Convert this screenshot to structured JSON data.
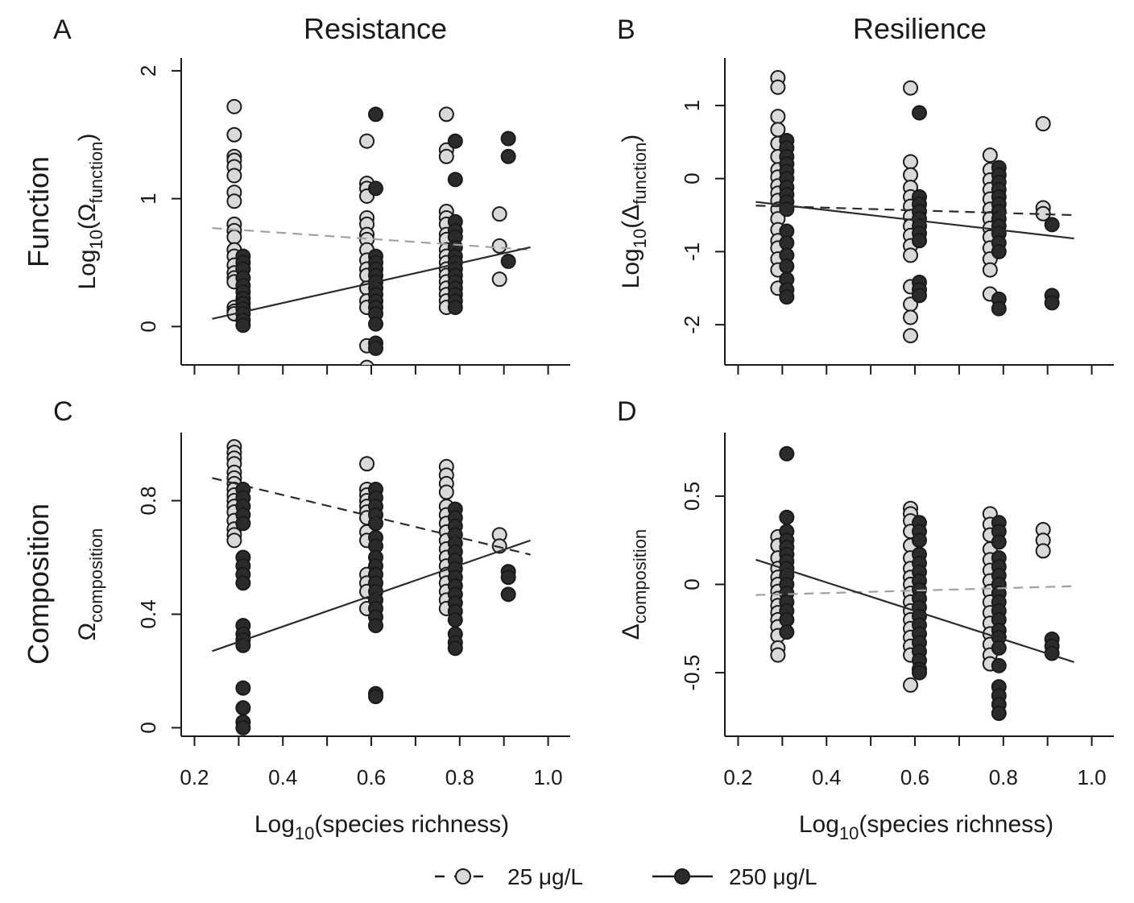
{
  "colors": {
    "low_fill": "#d9d9d9",
    "high_fill": "#2b2b2b",
    "point_stroke": "#1a1a1a",
    "fit_dark": "#2b2b2b",
    "fit_grey": "#a0a0a0"
  },
  "column_titles": [
    "Resistance",
    "Resilience"
  ],
  "row_titles": [
    "Function",
    "Composition"
  ],
  "x_axis_title": {
    "main": "Log",
    "sub": "10",
    "rest": "(species richness)"
  },
  "legend": {
    "low": {
      "label": "25 μg/L",
      "line": "dashed",
      "marker": "circle-light"
    },
    "high": {
      "label": "250 μg/L",
      "line": "solid",
      "marker": "circle-dark"
    }
  },
  "chart_data": [
    {
      "panel": "A",
      "type": "scatter",
      "column": "Resistance",
      "row": "Function",
      "ylabel": {
        "main": "Log",
        "sub": "10",
        "rest1": "(Ω",
        "sub2": "function",
        "rest2": ")"
      },
      "xlim": [
        0.17,
        1.05
      ],
      "ylim": [
        -0.3,
        2.1
      ],
      "xticks": [
        0.2,
        0.4,
        0.6,
        0.8,
        1.0
      ],
      "xtick_labels": [
        "0.2",
        "0.4",
        "0.6",
        "0.8",
        "1.0"
      ],
      "yticks": [
        0,
        1,
        2
      ],
      "ytick_labels": [
        "0",
        "1",
        "2"
      ],
      "series": [
        {
          "key": "low",
          "x": 0.29,
          "y": [
            1.72,
            1.5,
            1.33,
            1.3,
            1.25,
            1.18,
            1.05,
            0.98,
            0.8,
            0.75,
            0.7,
            0.6,
            0.55,
            0.48,
            0.42,
            0.38,
            0.35,
            0.15,
            0.12,
            0.1
          ]
        },
        {
          "key": "high",
          "x": 0.31,
          "y": [
            0.55,
            0.5,
            0.45,
            0.38,
            0.32,
            0.27,
            0.22,
            0.18,
            0.14,
            0.1,
            0.05,
            0.01
          ]
        },
        {
          "key": "low",
          "x": 0.59,
          "y": [
            1.45,
            1.12,
            1.08,
            1.02,
            0.85,
            0.8,
            0.72,
            0.68,
            0.6,
            0.52,
            0.45,
            0.4,
            0.3,
            0.2,
            0.15,
            -0.15,
            -0.32
          ]
        },
        {
          "key": "high",
          "x": 0.61,
          "y": [
            1.66,
            1.08,
            0.55,
            0.5,
            0.45,
            0.4,
            0.35,
            0.3,
            0.25,
            0.2,
            0.15,
            0.1,
            0.02,
            -0.13,
            -0.17
          ]
        },
        {
          "key": "low",
          "x": 0.77,
          "y": [
            1.66,
            1.38,
            1.33,
            0.9,
            0.85,
            0.8,
            0.72,
            0.68,
            0.6,
            0.55,
            0.5,
            0.45,
            0.4,
            0.35,
            0.3,
            0.25,
            0.2,
            0.15
          ]
        },
        {
          "key": "high",
          "x": 0.79,
          "y": [
            1.45,
            1.15,
            0.82,
            0.75,
            0.7,
            0.62,
            0.55,
            0.5,
            0.45,
            0.4,
            0.35,
            0.3,
            0.25,
            0.2,
            0.15
          ]
        },
        {
          "key": "low",
          "x": 0.89,
          "y": [
            0.88,
            0.63,
            0.37
          ]
        },
        {
          "key": "high",
          "x": 0.91,
          "y": [
            1.47,
            1.33,
            0.51
          ]
        }
      ],
      "fits": [
        {
          "key": "low",
          "style": "dashed-grey",
          "x": [
            0.24,
            0.96
          ],
          "y": [
            0.77,
            0.6
          ]
        },
        {
          "key": "high",
          "style": "solid",
          "x": [
            0.24,
            0.96
          ],
          "y": [
            0.06,
            0.62
          ]
        }
      ]
    },
    {
      "panel": "B",
      "type": "scatter",
      "column": "Resilience",
      "row": "Function",
      "ylabel": {
        "main": "Log",
        "sub": "10",
        "rest1": "(Δ",
        "sub2": "function",
        "rest2": ")"
      },
      "xlim": [
        0.17,
        1.05
      ],
      "ylim": [
        -2.55,
        1.65
      ],
      "xticks": [
        0.2,
        0.4,
        0.6,
        0.8,
        1.0
      ],
      "xtick_labels": [
        "0.2",
        "0.4",
        "0.6",
        "0.8",
        "1.0"
      ],
      "yticks": [
        1,
        0,
        -1,
        -2
      ],
      "ytick_labels": [
        "1",
        "0",
        "-1",
        "-2"
      ],
      "series": [
        {
          "key": "low",
          "x": 0.29,
          "y": [
            1.38,
            1.25,
            0.85,
            0.67,
            0.48,
            0.3,
            0.12,
            0.02,
            -0.1,
            -0.2,
            -0.3,
            -0.42,
            -0.55,
            -0.7,
            -0.85,
            -0.95,
            -1.1,
            -1.25,
            -1.5
          ]
        },
        {
          "key": "high",
          "x": 0.31,
          "y": [
            0.52,
            0.42,
            0.3,
            0.2,
            0.1,
            0.0,
            -0.12,
            -0.22,
            -0.32,
            -0.42,
            -0.72,
            -0.88,
            -1.05,
            -1.2,
            -1.38,
            -1.52,
            -1.62
          ]
        },
        {
          "key": "low",
          "x": 0.59,
          "y": [
            1.24,
            0.23,
            0.05,
            -0.12,
            -0.25,
            -0.38,
            -0.52,
            -0.65,
            -0.78,
            -0.92,
            -1.05,
            -1.48,
            -1.72,
            -1.9,
            -2.15
          ]
        },
        {
          "key": "high",
          "x": 0.61,
          "y": [
            0.9,
            -0.25,
            -0.35,
            -0.45,
            -0.55,
            -0.65,
            -0.75,
            -0.85,
            -1.42,
            -1.52,
            -1.6
          ]
        },
        {
          "key": "low",
          "x": 0.77,
          "y": [
            0.32,
            0.12,
            -0.02,
            -0.15,
            -0.28,
            -0.42,
            -0.55,
            -0.68,
            -0.8,
            -0.95,
            -1.1,
            -1.25,
            -1.58
          ]
        },
        {
          "key": "high",
          "x": 0.79,
          "y": [
            0.15,
            0.05,
            -0.05,
            -0.15,
            -0.25,
            -0.35,
            -0.45,
            -0.55,
            -0.65,
            -0.75,
            -0.88,
            -1.0,
            -1.65,
            -1.78
          ]
        },
        {
          "key": "low",
          "x": 0.89,
          "y": [
            0.75,
            -0.4,
            -0.48
          ]
        },
        {
          "key": "high",
          "x": 0.91,
          "y": [
            -0.63,
            -1.6,
            -1.7
          ]
        }
      ],
      "fits": [
        {
          "key": "low",
          "style": "dashed",
          "x": [
            0.24,
            0.96
          ],
          "y": [
            -0.37,
            -0.5
          ]
        },
        {
          "key": "high",
          "style": "solid",
          "x": [
            0.24,
            0.96
          ],
          "y": [
            -0.32,
            -0.82
          ]
        }
      ]
    },
    {
      "panel": "C",
      "type": "scatter",
      "column": "Resistance",
      "row": "Composition",
      "ylabel": {
        "main": "Ω",
        "sub": "composition"
      },
      "xlim": [
        0.17,
        1.05
      ],
      "ylim": [
        -0.03,
        1.04
      ],
      "xticks": [
        0.2,
        0.4,
        0.6,
        0.8,
        1.0
      ],
      "xtick_labels": [
        "0.2",
        "0.4",
        "0.6",
        "0.8",
        "1.0"
      ],
      "yticks": [
        0,
        0.4,
        0.8
      ],
      "ytick_labels": [
        "0",
        "0.4",
        "0.8"
      ],
      "series": [
        {
          "key": "low",
          "x": 0.29,
          "y": [
            0.99,
            0.97,
            0.95,
            0.93,
            0.9,
            0.88,
            0.86,
            0.84,
            0.82,
            0.8,
            0.78,
            0.76,
            0.73,
            0.7,
            0.68,
            0.66
          ]
        },
        {
          "key": "high",
          "x": 0.31,
          "y": [
            0.84,
            0.81,
            0.78,
            0.75,
            0.72,
            0.6,
            0.57,
            0.54,
            0.51,
            0.36,
            0.33,
            0.31,
            0.29,
            0.14,
            0.07,
            0.02,
            0.0
          ]
        },
        {
          "key": "low",
          "x": 0.59,
          "y": [
            0.93,
            0.84,
            0.82,
            0.8,
            0.78,
            0.76,
            0.74,
            0.69,
            0.66,
            0.54,
            0.51,
            0.48,
            0.42
          ]
        },
        {
          "key": "high",
          "x": 0.61,
          "y": [
            0.84,
            0.81,
            0.78,
            0.75,
            0.72,
            0.67,
            0.64,
            0.6,
            0.57,
            0.54,
            0.51,
            0.48,
            0.45,
            0.42,
            0.39,
            0.36,
            0.12,
            0.11
          ]
        },
        {
          "key": "low",
          "x": 0.77,
          "y": [
            0.92,
            0.89,
            0.86,
            0.83,
            0.78,
            0.75,
            0.72,
            0.69,
            0.66,
            0.63,
            0.6,
            0.57,
            0.54,
            0.51,
            0.48,
            0.45,
            0.42
          ]
        },
        {
          "key": "high",
          "x": 0.79,
          "y": [
            0.77,
            0.74,
            0.71,
            0.68,
            0.65,
            0.62,
            0.59,
            0.56,
            0.53,
            0.5,
            0.47,
            0.44,
            0.41,
            0.38,
            0.33,
            0.3,
            0.28
          ]
        },
        {
          "key": "low",
          "x": 0.89,
          "y": [
            0.68,
            0.64
          ]
        },
        {
          "key": "high",
          "x": 0.91,
          "y": [
            0.55,
            0.53,
            0.47
          ]
        }
      ],
      "fits": [
        {
          "key": "low",
          "style": "dashed",
          "x": [
            0.24,
            0.96
          ],
          "y": [
            0.88,
            0.61
          ]
        },
        {
          "key": "high",
          "style": "solid",
          "x": [
            0.24,
            0.96
          ],
          "y": [
            0.27,
            0.66
          ]
        }
      ]
    },
    {
      "panel": "D",
      "type": "scatter",
      "column": "Resilience",
      "row": "Composition",
      "ylabel": {
        "main": "Δ",
        "sub": "composition"
      },
      "xlim": [
        0.17,
        1.05
      ],
      "ylim": [
        -0.86,
        0.86
      ],
      "xticks": [
        0.2,
        0.4,
        0.6,
        0.8,
        1.0
      ],
      "xtick_labels": [
        "0.2",
        "0.4",
        "0.6",
        "0.8",
        "1.0"
      ],
      "yticks": [
        0.5,
        0,
        -0.5
      ],
      "ytick_labels": [
        "0.5",
        "0",
        "-0.5"
      ],
      "series": [
        {
          "key": "low",
          "x": 0.29,
          "y": [
            0.27,
            0.22,
            0.15,
            0.09,
            0.04,
            0.0,
            -0.04,
            -0.08,
            -0.12,
            -0.16,
            -0.2,
            -0.24,
            -0.29,
            -0.36,
            -0.4
          ]
        },
        {
          "key": "high",
          "x": 0.31,
          "y": [
            0.74,
            0.38,
            0.3,
            0.25,
            0.21,
            0.17,
            0.13,
            0.09,
            0.05,
            0.0,
            -0.05,
            -0.1,
            -0.15,
            -0.2,
            -0.27
          ]
        },
        {
          "key": "low",
          "x": 0.59,
          "y": [
            0.43,
            0.4,
            0.36,
            0.3,
            0.22,
            0.15,
            0.09,
            0.04,
            0.0,
            -0.05,
            -0.1,
            -0.15,
            -0.2,
            -0.25,
            -0.3,
            -0.35,
            -0.4,
            -0.57
          ]
        },
        {
          "key": "high",
          "x": 0.61,
          "y": [
            0.35,
            0.3,
            0.25,
            0.17,
            0.12,
            0.07,
            0.02,
            -0.03,
            -0.08,
            -0.13,
            -0.18,
            -0.23,
            -0.28,
            -0.33,
            -0.38,
            -0.43,
            -0.48,
            -0.5
          ]
        },
        {
          "key": "low",
          "x": 0.77,
          "y": [
            0.4,
            0.34,
            0.28,
            0.2,
            0.14,
            0.08,
            0.02,
            -0.04,
            -0.1,
            -0.16,
            -0.22,
            -0.28,
            -0.34,
            -0.4,
            -0.45
          ]
        },
        {
          "key": "high",
          "x": 0.79,
          "y": [
            0.35,
            0.3,
            0.24,
            0.15,
            0.1,
            0.05,
            0.0,
            -0.05,
            -0.1,
            -0.15,
            -0.2,
            -0.26,
            -0.3,
            -0.36,
            -0.46,
            -0.58,
            -0.63,
            -0.68,
            -0.73
          ]
        },
        {
          "key": "low",
          "x": 0.89,
          "y": [
            0.31,
            0.25,
            0.19
          ]
        },
        {
          "key": "high",
          "x": 0.91,
          "y": [
            -0.31,
            -0.35,
            -0.39
          ]
        }
      ],
      "fits": [
        {
          "key": "low",
          "style": "dashed-grey",
          "x": [
            0.24,
            0.96
          ],
          "y": [
            -0.06,
            -0.01
          ]
        },
        {
          "key": "high",
          "style": "solid",
          "x": [
            0.24,
            0.96
          ],
          "y": [
            0.14,
            -0.44
          ]
        }
      ]
    }
  ]
}
